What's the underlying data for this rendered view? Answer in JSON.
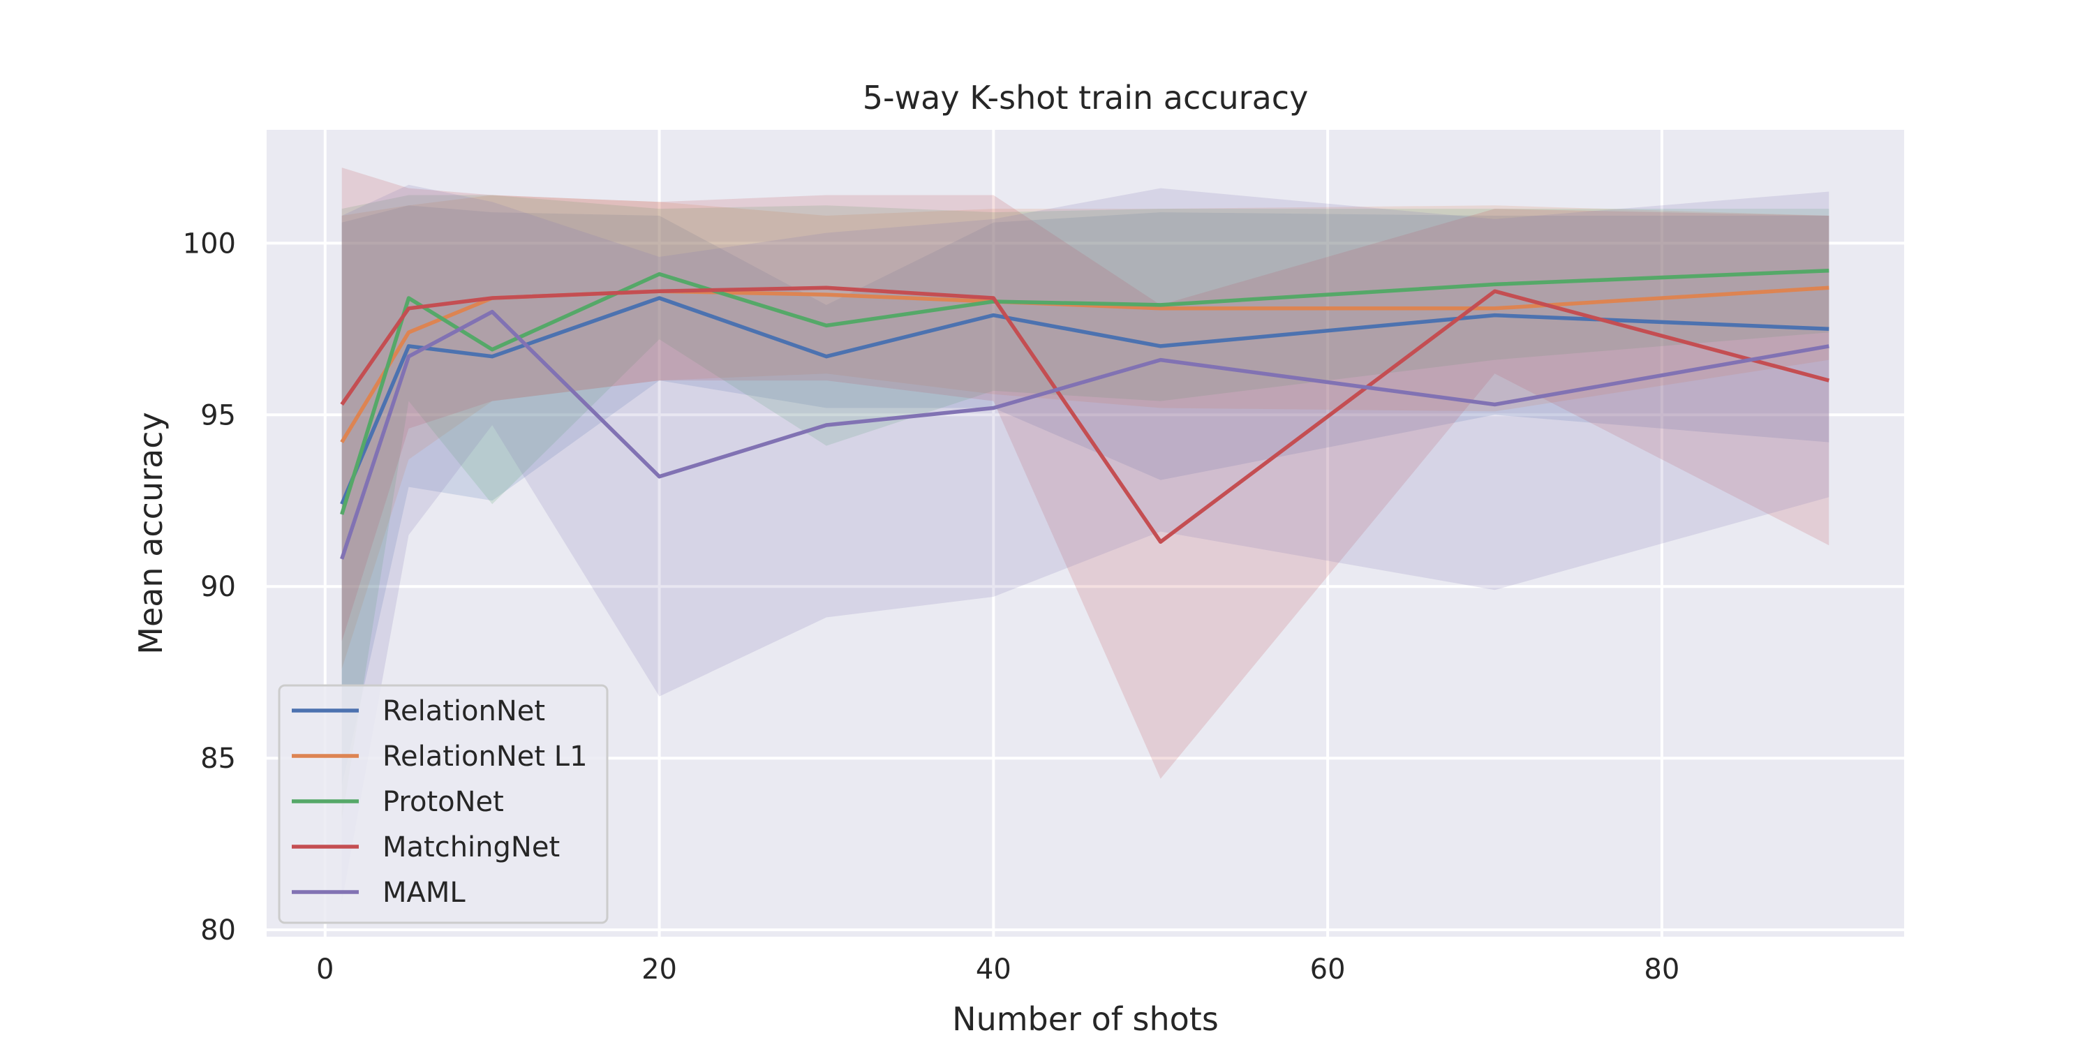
{
  "chart_data": {
    "type": "line",
    "title": "5-way K-shot train accuracy",
    "xlabel": "Number of shots",
    "ylabel": "Mean accuracy",
    "xlim": [
      -3.5,
      94.5
    ],
    "ylim": [
      79.8,
      103.3
    ],
    "xticks": [
      0,
      20,
      40,
      60,
      80
    ],
    "yticks": [
      80,
      85,
      90,
      95,
      100
    ],
    "grid": true,
    "background": "#eaeaf2",
    "legend_position": "lower-left",
    "x": [
      1,
      5,
      10,
      20,
      30,
      40,
      50,
      70,
      90
    ],
    "series": [
      {
        "name": "RelationNet",
        "color": "#4c72b0",
        "values": [
          92.4,
          97.0,
          96.7,
          98.4,
          96.7,
          97.9,
          97.0,
          97.9,
          97.5
        ],
        "lower": [
          84.2,
          92.9,
          92.5,
          96.0,
          95.2,
          95.2,
          93.1,
          95.0,
          94.2
        ],
        "upper": [
          100.6,
          101.1,
          100.9,
          100.8,
          98.2,
          100.6,
          100.9,
          100.8,
          100.8
        ]
      },
      {
        "name": "RelationNet L1",
        "color": "#dd8452",
        "values": [
          94.2,
          97.4,
          98.4,
          98.6,
          98.5,
          98.3,
          98.1,
          98.1,
          98.7
        ],
        "lower": [
          87.6,
          93.7,
          95.4,
          96.0,
          96.2,
          95.6,
          95.2,
          95.1,
          96.6
        ],
        "upper": [
          100.8,
          101.1,
          101.4,
          101.2,
          100.8,
          101.0,
          101.0,
          101.1,
          100.8
        ]
      },
      {
        "name": "ProtoNet",
        "color": "#55a868",
        "values": [
          92.1,
          98.4,
          96.9,
          99.1,
          97.6,
          98.3,
          98.2,
          98.8,
          99.2
        ],
        "lower": [
          83.2,
          95.4,
          92.4,
          97.2,
          94.1,
          95.7,
          95.4,
          96.6,
          97.4
        ],
        "upper": [
          101.0,
          101.4,
          101.4,
          101.0,
          101.1,
          100.9,
          101.0,
          101.0,
          101.0
        ]
      },
      {
        "name": "MatchingNet",
        "color": "#c44e52",
        "values": [
          95.3,
          98.1,
          98.4,
          98.6,
          98.7,
          98.4,
          91.3,
          98.6,
          96.0
        ],
        "lower": [
          88.4,
          94.6,
          95.4,
          96.0,
          96.0,
          95.4,
          84.4,
          96.2,
          91.2
        ],
        "upper": [
          102.2,
          101.6,
          101.4,
          101.2,
          101.4,
          101.4,
          98.2,
          101.0,
          100.8
        ]
      },
      {
        "name": "MAML",
        "color": "#8172b3",
        "values": [
          90.8,
          96.7,
          98.0,
          93.2,
          94.7,
          95.2,
          96.6,
          95.3,
          97.0
        ],
        "lower": [
          80.8,
          91.5,
          94.7,
          86.8,
          89.1,
          89.7,
          91.6,
          89.9,
          92.6
        ],
        "upper": [
          100.8,
          101.7,
          101.2,
          99.6,
          100.3,
          100.7,
          101.6,
          100.7,
          101.5
        ]
      }
    ]
  }
}
